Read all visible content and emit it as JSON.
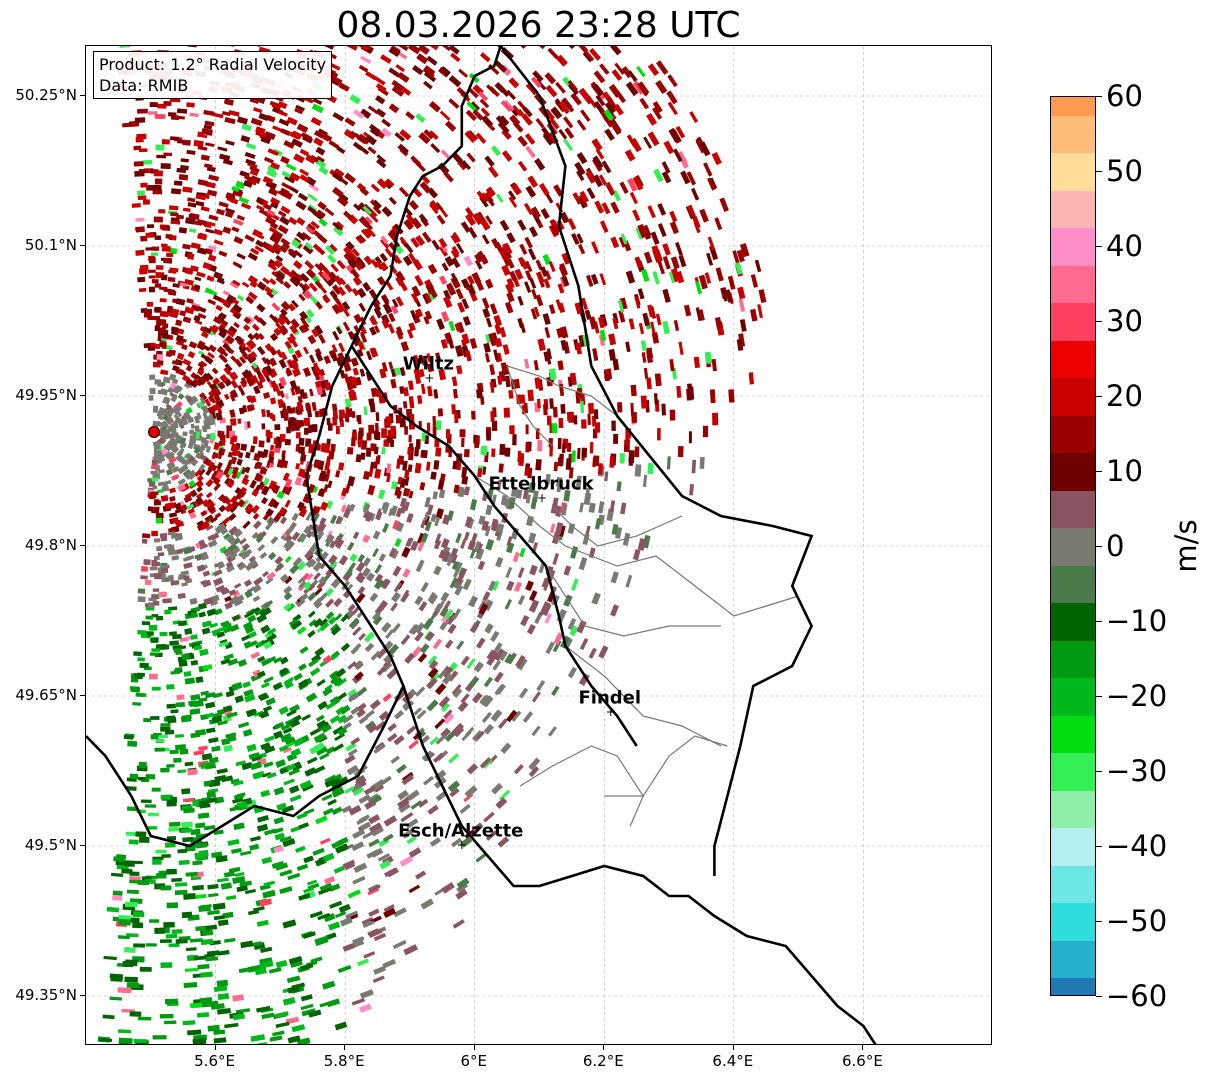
{
  "title": "08.03.2026 23:28 UTC",
  "info_box": {
    "product": "Product: 1.2° Radial Velocity",
    "data": "Data: RMIB"
  },
  "axes": {
    "lon_range": [
      5.4,
      6.8
    ],
    "lat_range": [
      49.3,
      50.3
    ],
    "lon_ticks": [
      "5.6°E",
      "5.8°E",
      "6°E",
      "6.2°E",
      "6.4°E",
      "6.6°E"
    ],
    "lon_tick_values": [
      5.6,
      5.8,
      6.0,
      6.2,
      6.4,
      6.6
    ],
    "lat_ticks": [
      "50.25°N",
      "50.1°N",
      "49.95°N",
      "49.8°N",
      "49.65°N",
      "49.5°N",
      "49.35°N"
    ],
    "lat_tick_values": [
      50.25,
      50.1,
      49.95,
      49.8,
      49.65,
      49.5,
      49.35
    ]
  },
  "cities": [
    {
      "name": "Wiltz",
      "lon": 5.93,
      "lat": 49.967
    },
    {
      "name": "Ettelbruck",
      "lon": 6.104,
      "lat": 49.847
    },
    {
      "name": "Findel",
      "lon": 6.21,
      "lat": 49.633
    },
    {
      "name": "Esch/Alzette",
      "lon": 5.98,
      "lat": 49.5
    }
  ],
  "radar_site": {
    "lon": 5.505,
    "lat": 49.914,
    "color": "#e00000"
  },
  "colorbar": {
    "unit": "m/s",
    "min": -60,
    "max": 60,
    "ticks": [
      "60",
      "50",
      "40",
      "30",
      "20",
      "10",
      "0",
      "−10",
      "−20",
      "−30",
      "−40",
      "−50",
      "−60"
    ],
    "tick_values": [
      60,
      50,
      40,
      30,
      20,
      10,
      0,
      -10,
      -20,
      -30,
      -40,
      -50,
      -60
    ],
    "stops": [
      {
        "v": -60,
        "c": "#1f77b4"
      },
      {
        "v": -55,
        "c": "#26b0d0"
      },
      {
        "v": -50,
        "c": "#2edcdc"
      },
      {
        "v": -45,
        "c": "#6de6e6"
      },
      {
        "v": -40,
        "c": "#b4eef0"
      },
      {
        "v": -35,
        "c": "#8ef0a8"
      },
      {
        "v": -30,
        "c": "#33ee55"
      },
      {
        "v": -25,
        "c": "#00dd11"
      },
      {
        "v": -20,
        "c": "#00b81c"
      },
      {
        "v": -15,
        "c": "#009a10"
      },
      {
        "v": -10,
        "c": "#006400"
      },
      {
        "v": -5,
        "c": "#4a7a4a"
      },
      {
        "v": 0,
        "c": "#7a7a72"
      },
      {
        "v": 5,
        "c": "#8a5560"
      },
      {
        "v": 10,
        "c": "#6e0000"
      },
      {
        "v": 15,
        "c": "#9a0000"
      },
      {
        "v": 20,
        "c": "#c80000"
      },
      {
        "v": 25,
        "c": "#ee0000"
      },
      {
        "v": 30,
        "c": "#ff4060"
      },
      {
        "v": 35,
        "c": "#ff6c90"
      },
      {
        "v": 40,
        "c": "#ff8ec8"
      },
      {
        "v": 45,
        "c": "#ffb4b4"
      },
      {
        "v": 50,
        "c": "#ffdc98"
      },
      {
        "v": 55,
        "c": "#ffbc78"
      },
      {
        "v": 60,
        "c": "#ff9a50"
      }
    ]
  },
  "boundaries": {
    "national_color": "#000000",
    "canton_color": "#777777",
    "national": [
      [
        [
          6.04,
          50.3
        ],
        [
          6.03,
          50.28
        ],
        [
          6.0,
          50.27
        ],
        [
          5.98,
          50.24
        ],
        [
          5.98,
          50.2
        ],
        [
          5.95,
          50.18
        ],
        [
          5.92,
          50.17
        ],
        [
          5.9,
          50.15
        ],
        [
          5.88,
          50.11
        ],
        [
          5.87,
          50.07
        ],
        [
          5.84,
          50.04
        ],
        [
          5.81,
          50.0
        ],
        [
          5.78,
          49.96
        ],
        [
          5.76,
          49.91
        ],
        [
          5.74,
          49.87
        ],
        [
          5.75,
          49.83
        ],
        [
          5.76,
          49.79
        ],
        [
          5.8,
          49.76
        ],
        [
          5.84,
          49.72
        ],
        [
          5.87,
          49.69
        ],
        [
          5.89,
          49.66
        ],
        [
          5.86,
          49.62
        ],
        [
          5.82,
          49.57
        ],
        [
          5.76,
          49.55
        ],
        [
          5.72,
          49.53
        ],
        [
          5.66,
          49.54
        ],
        [
          5.61,
          49.52
        ],
        [
          5.56,
          49.5
        ],
        [
          5.5,
          49.51
        ],
        [
          5.47,
          49.55
        ],
        [
          5.43,
          49.59
        ],
        [
          5.4,
          49.61
        ]
      ],
      [
        [
          5.81,
          50.0
        ],
        [
          5.84,
          49.97
        ],
        [
          5.87,
          49.94
        ],
        [
          5.91,
          49.92
        ],
        [
          5.96,
          49.9
        ],
        [
          6.0,
          49.87
        ],
        [
          6.03,
          49.84
        ],
        [
          6.07,
          49.81
        ],
        [
          6.11,
          49.78
        ],
        [
          6.13,
          49.73
        ],
        [
          6.14,
          49.7
        ],
        [
          6.18,
          49.66
        ],
        [
          6.22,
          49.63
        ],
        [
          6.25,
          49.6
        ]
      ],
      [
        [
          5.89,
          49.66
        ],
        [
          5.92,
          49.6
        ],
        [
          5.95,
          49.56
        ],
        [
          5.98,
          49.52
        ],
        [
          6.02,
          49.49
        ],
        [
          6.06,
          49.46
        ],
        [
          6.1,
          49.46
        ],
        [
          6.15,
          49.47
        ],
        [
          6.2,
          49.48
        ],
        [
          6.26,
          49.47
        ],
        [
          6.3,
          49.45
        ],
        [
          6.33,
          49.45
        ],
        [
          6.37,
          49.43
        ],
        [
          6.42,
          49.41
        ],
        [
          6.48,
          49.4
        ],
        [
          6.52,
          49.37
        ],
        [
          6.56,
          49.34
        ],
        [
          6.6,
          49.32
        ],
        [
          6.62,
          49.3
        ]
      ],
      [
        [
          6.04,
          50.3
        ],
        [
          6.1,
          50.25
        ],
        [
          6.14,
          50.18
        ],
        [
          6.13,
          50.12
        ],
        [
          6.16,
          50.06
        ],
        [
          6.18,
          49.98
        ],
        [
          6.22,
          49.93
        ],
        [
          6.27,
          49.89
        ],
        [
          6.32,
          49.85
        ],
        [
          6.38,
          49.83
        ],
        [
          6.46,
          49.82
        ],
        [
          6.52,
          49.81
        ],
        [
          6.49,
          49.76
        ],
        [
          6.52,
          49.72
        ],
        [
          6.49,
          49.68
        ],
        [
          6.43,
          49.66
        ],
        [
          6.41,
          49.6
        ],
        [
          6.39,
          49.55
        ],
        [
          6.37,
          49.5
        ],
        [
          6.37,
          49.47
        ]
      ]
    ],
    "cantons": [
      [
        [
          6.05,
          49.98
        ],
        [
          6.1,
          49.97
        ],
        [
          6.13,
          49.96
        ],
        [
          6.18,
          49.95
        ],
        [
          6.22,
          49.93
        ]
      ],
      [
        [
          6.05,
          49.98
        ],
        [
          6.07,
          49.94
        ],
        [
          6.09,
          49.92
        ],
        [
          6.12,
          49.9
        ]
      ],
      [
        [
          6.0,
          49.87
        ],
        [
          6.05,
          49.85
        ],
        [
          6.1,
          49.82
        ],
        [
          6.14,
          49.8
        ],
        [
          6.18,
          49.79
        ],
        [
          6.22,
          49.78
        ],
        [
          6.28,
          49.79
        ],
        [
          6.34,
          49.76
        ],
        [
          6.4,
          49.73
        ],
        [
          6.5,
          49.75
        ]
      ],
      [
        [
          6.12,
          49.84
        ],
        [
          6.15,
          49.82
        ],
        [
          6.19,
          49.8
        ],
        [
          6.25,
          49.81
        ],
        [
          6.32,
          49.83
        ]
      ],
      [
        [
          6.11,
          49.78
        ],
        [
          6.17,
          49.72
        ],
        [
          6.23,
          49.71
        ],
        [
          6.3,
          49.72
        ],
        [
          6.38,
          49.72
        ]
      ],
      [
        [
          6.14,
          49.7
        ],
        [
          6.2,
          49.67
        ],
        [
          6.26,
          49.63
        ],
        [
          6.32,
          49.62
        ],
        [
          6.38,
          49.6
        ]
      ],
      [
        [
          6.07,
          49.56
        ],
        [
          6.12,
          49.58
        ],
        [
          6.18,
          49.6
        ],
        [
          6.22,
          49.59
        ],
        [
          6.26,
          49.55
        ],
        [
          6.24,
          49.52
        ]
      ],
      [
        [
          6.2,
          49.55
        ],
        [
          6.26,
          49.55
        ],
        [
          6.3,
          49.59
        ],
        [
          6.34,
          49.61
        ],
        [
          6.39,
          49.6
        ]
      ]
    ]
  }
}
